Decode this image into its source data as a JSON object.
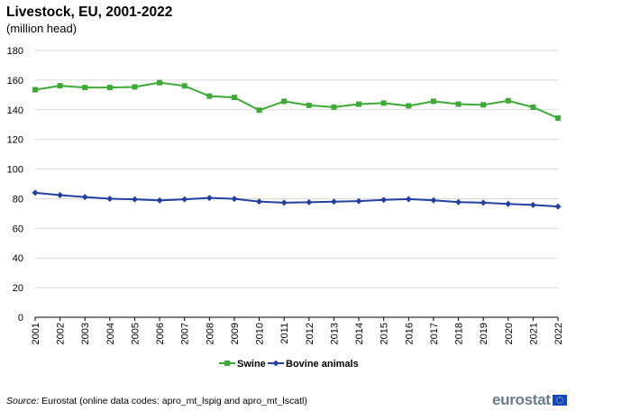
{
  "header": {
    "title": "Livestock, EU, 2001-2022",
    "subtitle": "(million head)"
  },
  "footer": {
    "source_label": "Source:",
    "source_text": " Eurostat (online data codes: apro_mt_lspig and apro_mt_lscatl)",
    "logo_text": "eurostat"
  },
  "colors": {
    "swine": "#3daa35",
    "bovine": "#2440a0",
    "grid": "#d9d9d9",
    "axis": "#000000"
  },
  "chart_data": {
    "type": "line",
    "title": "Livestock, EU, 2001-2022",
    "subtitle": "(million head)",
    "xlabel": "",
    "ylabel": "",
    "ylim": [
      0,
      180
    ],
    "yticks": [
      0,
      20,
      40,
      60,
      80,
      100,
      120,
      140,
      160,
      180
    ],
    "grid": true,
    "legend": "bottom-center",
    "categories": [
      "2001",
      "2002",
      "2003",
      "2004",
      "2005",
      "2006",
      "2007",
      "2008",
      "2009",
      "2010",
      "2011",
      "2012",
      "2013",
      "2014",
      "2015",
      "2016",
      "2017",
      "2018",
      "2019",
      "2020",
      "2021",
      "2022"
    ],
    "series": [
      {
        "name": "Swine",
        "marker": "square",
        "values": [
          153.5,
          156.2,
          155.0,
          155.0,
          155.4,
          158.3,
          156.1,
          149.2,
          148.3,
          139.7,
          145.7,
          143.0,
          141.8,
          143.8,
          144.5,
          142.6,
          145.7,
          143.8,
          143.3,
          146.1,
          141.7,
          134.4
        ]
      },
      {
        "name": "Bovine  animals",
        "marker": "diamond",
        "values": [
          84.0,
          82.4,
          81.1,
          80.0,
          79.6,
          78.8,
          79.6,
          80.5,
          79.9,
          78.1,
          77.3,
          77.6,
          78.0,
          78.4,
          79.2,
          79.7,
          78.9,
          77.7,
          77.3,
          76.5,
          75.8,
          74.7
        ]
      }
    ]
  }
}
